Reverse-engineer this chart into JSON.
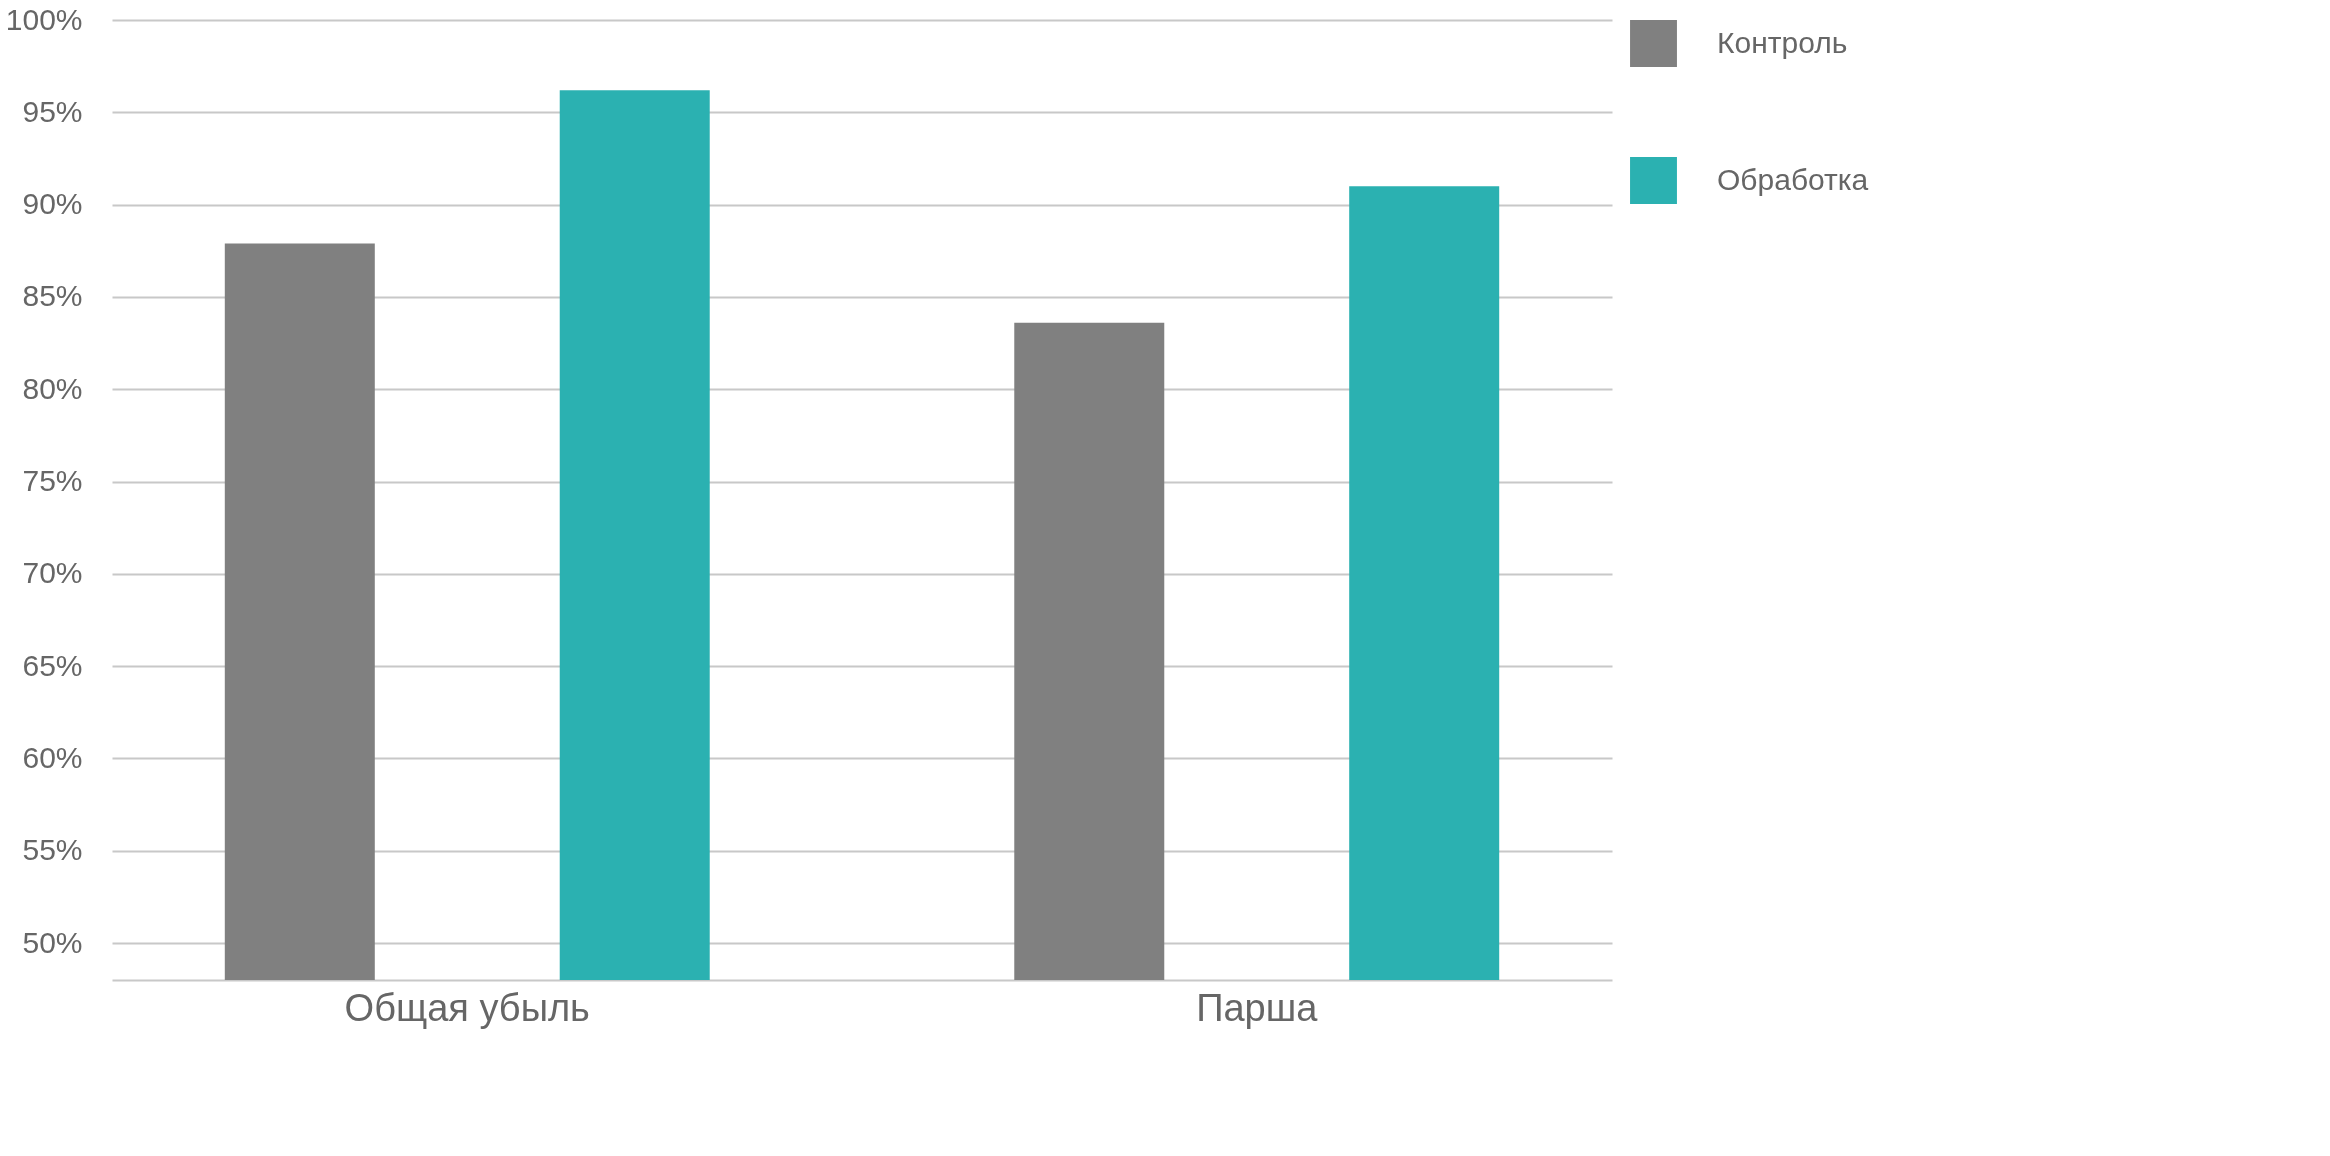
{
  "chart_data": {
    "type": "bar",
    "categories": [
      "Общая убыль",
      "Парша"
    ],
    "series": [
      {
        "name": "Контроль",
        "color": "#808080",
        "values": [
          87.9,
          83.6
        ]
      },
      {
        "name": "Обработка",
        "color": "#2bb1b1",
        "values": [
          96.2,
          91.0
        ]
      }
    ],
    "ylim": [
      48,
      100
    ],
    "yticks": [
      {
        "value": 50,
        "label": "50%"
      },
      {
        "value": 55,
        "label": "55%"
      },
      {
        "value": 60,
        "label": "60%"
      },
      {
        "value": 65,
        "label": "65%"
      },
      {
        "value": 70,
        "label": "70%"
      },
      {
        "value": 75,
        "label": "75%"
      },
      {
        "value": 80,
        "label": "80%"
      },
      {
        "value": 85,
        "label": "85%"
      },
      {
        "value": 90,
        "label": "90%"
      },
      {
        "value": 95,
        "label": "95%"
      },
      {
        "value": 100,
        "label": "100%"
      }
    ],
    "grid": "y",
    "legend": "right"
  }
}
